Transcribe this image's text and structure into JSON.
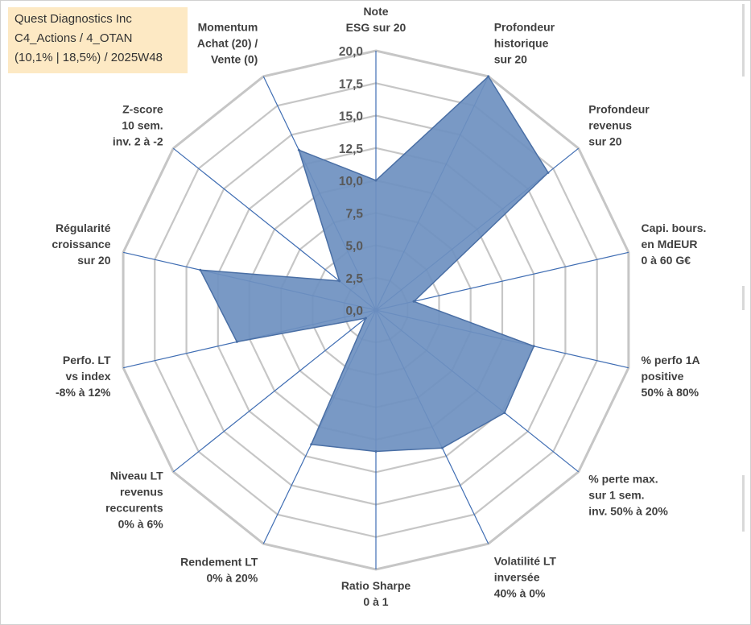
{
  "info_box": {
    "line1": "Quest Diagnostics Inc",
    "line2": "C4_Actions / 4_OTAN",
    "line3": "(10,1% | 18,5%) / 2025W48"
  },
  "colors": {
    "fill": "#6e90c0",
    "stroke": "#4a6fa5",
    "grid": "#c6c6c6",
    "spokes": "#3f6db3",
    "info_bg": "#fde9c4"
  },
  "chart_data": {
    "type": "radar",
    "title": "",
    "r_range": [
      0,
      20
    ],
    "r_ticks": [
      "0,0",
      "2,5",
      "5,0",
      "7,5",
      "10,0",
      "12,5",
      "15,0",
      "17,5",
      "20,0"
    ],
    "grid": true,
    "axes": [
      {
        "name": "note-esg",
        "lines": [
          "Note",
          "ESG sur 20"
        ],
        "value": 10.0
      },
      {
        "name": "profondeur-historique",
        "lines": [
          "Profondeur",
          "historique",
          "sur 20"
        ],
        "value": 20.0
      },
      {
        "name": "profondeur-revenus",
        "lines": [
          "Profondeur",
          "revenus",
          "sur 20"
        ],
        "value": 17.0
      },
      {
        "name": "capi-bours",
        "lines": [
          "Capi. bours.",
          "en MdEUR",
          "0 à 60 G€"
        ],
        "value": 3.0
      },
      {
        "name": "perfo-1a-positive",
        "lines": [
          "% perfo 1A",
          "positive",
          "50% à 80%"
        ],
        "value": 12.5
      },
      {
        "name": "perte-max",
        "lines": [
          "% perte max.",
          "sur 1 sem.",
          "inv. 50% à 20%"
        ],
        "value": 12.7
      },
      {
        "name": "volatilite-lt",
        "lines": [
          "Volatilité LT",
          "inversée",
          "40% à 0%"
        ],
        "value": 11.8
      },
      {
        "name": "ratio-sharpe",
        "lines": [
          "Ratio Sharpe",
          "0 à 1"
        ],
        "value": 10.9
      },
      {
        "name": "rendement-lt",
        "lines": [
          "Rendement LT",
          "0% à 20%"
        ],
        "value": 11.5
      },
      {
        "name": "niveau-lt-revenus",
        "lines": [
          "Niveau LT",
          "revenus",
          "reccurents",
          "0% à 6%"
        ],
        "value": 1.0
      },
      {
        "name": "perfo-lt-vs-index",
        "lines": [
          "Perfo. LT",
          "vs index",
          "-8% à 12%"
        ],
        "value": 11.0
      },
      {
        "name": "regularite-croissance",
        "lines": [
          "Régularité",
          "croissance",
          "sur 20"
        ],
        "value": 13.9
      },
      {
        "name": "z-score",
        "lines": [
          "Z-score",
          "10 sem.",
          "inv. 2 à -2"
        ],
        "value": 3.6
      },
      {
        "name": "momentum",
        "lines": [
          "Momentum",
          "Achat (20) /",
          "Vente (0)"
        ],
        "value": 13.7
      }
    ]
  }
}
